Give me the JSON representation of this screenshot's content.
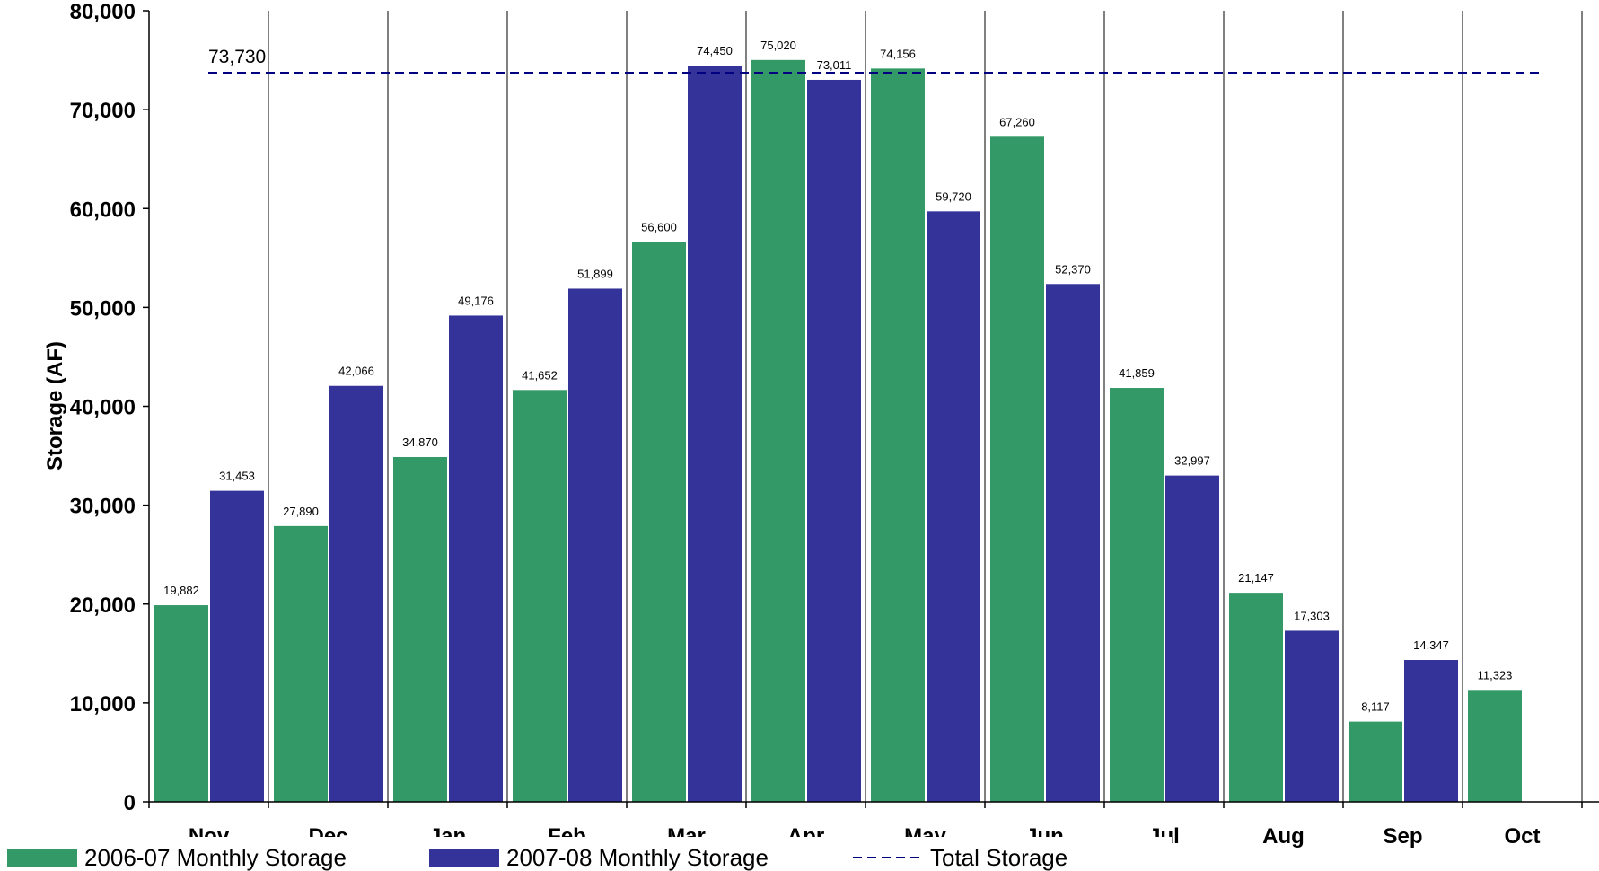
{
  "chart_data": {
    "type": "bar",
    "title": "",
    "xlabel": "",
    "ylabel": "Storage (AF)",
    "ylim": [
      0,
      80000
    ],
    "yticks": [
      0,
      10000,
      20000,
      30000,
      40000,
      50000,
      60000,
      70000,
      80000
    ],
    "ytick_labels": [
      "0",
      "10,000",
      "20,000",
      "30,000",
      "40,000",
      "50,000",
      "60,000",
      "70,000",
      "80,000"
    ],
    "categories": [
      "Nov",
      "Dec",
      "Jan",
      "Feb",
      "Mar",
      "Apr",
      "May",
      "Jun",
      "Jul",
      "Aug",
      "Sep",
      "Oct"
    ],
    "series": [
      {
        "name": "2006-07 Monthly Storage",
        "color": "#339966",
        "values": [
          19882,
          27890,
          34870,
          41652,
          56600,
          75020,
          74156,
          67260,
          41859,
          21147,
          8117,
          11323
        ],
        "labels": [
          "19,882",
          "27,890",
          "34,870",
          "41,652",
          "56,600",
          "75,020",
          "74,156",
          "67,260",
          "41,859",
          "21,147",
          "8,117",
          "11,323"
        ]
      },
      {
        "name": "2007-08 Monthly Storage",
        "color": "#333399",
        "values": [
          31453,
          42066,
          49176,
          51899,
          74450,
          73011,
          59720,
          52370,
          32997,
          17303,
          14347,
          null
        ],
        "labels": [
          "31,453",
          "42,066",
          "49,176",
          "51,899",
          "74,450",
          "73,011",
          "59,720",
          "52,370",
          "32,997",
          "17,303",
          "14,347",
          ""
        ]
      }
    ],
    "reference_line": {
      "name": "Total Storage",
      "value": 73730,
      "label": "73,730",
      "color": "#000080",
      "style": "dashed"
    },
    "grid": "vertical lines between categories",
    "legend": "bottom"
  }
}
